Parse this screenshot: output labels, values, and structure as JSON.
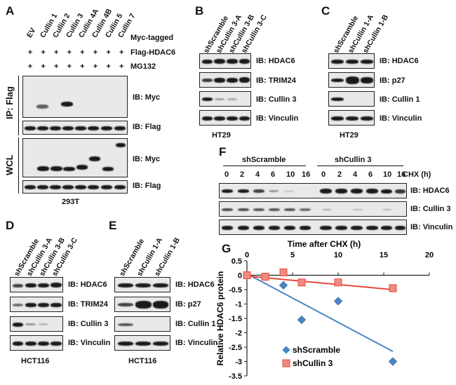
{
  "panels": {
    "A": {
      "letter": "A",
      "lanes": [
        "EV",
        "Cullin 1",
        "Cullin 2",
        "Cullin 3",
        "Cullin 4A",
        "Cullin 4B",
        "Cullin 5",
        "Cullin 7"
      ],
      "row_labels": [
        "Myc-tagged",
        "Flag-HDAC6",
        "MG132"
      ],
      "flag_row": [
        "+",
        "+",
        "+",
        "+",
        "+",
        "+",
        "+",
        "+"
      ],
      "mg_row": [
        "+",
        "+",
        "+",
        "+",
        "+",
        "+",
        "+",
        "+"
      ],
      "ip_label": "IP: Flag",
      "wcl_label": "WCL",
      "blots": [
        "IB: Myc",
        "IB: Flag",
        "IB: Myc",
        "IB: Flag"
      ],
      "cell_line": "293T"
    },
    "B": {
      "letter": "B",
      "lanes": [
        "shScramble",
        "shCullin 3-A",
        "shCullin 3-B",
        "shCullin 3-C"
      ],
      "blots": [
        "IB: HDAC6",
        "IB: TRIM24",
        "IB: Cullin 3",
        "IB: Vinculin"
      ],
      "cell_line": "HT29"
    },
    "C": {
      "letter": "C",
      "lanes": [
        "shScramble",
        "shCullin 1-A",
        "shCullin 1-B"
      ],
      "blots": [
        "IB: HDAC6",
        "IB: p27",
        "IB: Cullin 1",
        "IB: Vinculin"
      ],
      "cell_line": "HT29"
    },
    "D": {
      "letter": "D",
      "lanes": [
        "shScramble",
        "shCullin 3-A",
        "shCullin 3-B",
        "shCullin 3-C"
      ],
      "blots": [
        "IB: HDAC6",
        "IB: TRIM24",
        "IB: Cullin 3",
        "IB: Vinculin"
      ],
      "cell_line": "HCT116"
    },
    "E": {
      "letter": "E",
      "lanes": [
        "shScramble",
        "shCullin 1-A",
        "shCullin 1-B"
      ],
      "blots": [
        "IB: HDAC6",
        "IB: p27",
        "IB: Cullin 1",
        "IB: Vinculin"
      ],
      "cell_line": "HCT116"
    },
    "F": {
      "letter": "F",
      "groups": [
        "shScramble",
        "shCullin 3"
      ],
      "timepoints": [
        "0",
        "2",
        "4",
        "6",
        "10",
        "16",
        "0",
        "2",
        "4",
        "6",
        "10",
        "16"
      ],
      "chx_label": "CHX (h)",
      "blots": [
        "IB: HDAC6",
        "IB: Cullin 3",
        "IB: Vinculin"
      ]
    },
    "G": {
      "letter": "G"
    }
  },
  "chart_data": {
    "type": "scatter",
    "title": "Time after CHX (h)",
    "xlabel": "Time after CHX (h)",
    "ylabel": "Relative HDAC6 protein",
    "xlim": [
      0,
      20
    ],
    "ylim": [
      -3.5,
      0.5
    ],
    "xticks": [
      "0",
      "5",
      "10",
      "15",
      "20"
    ],
    "yticks": [
      "0.5",
      "0",
      "-0.5",
      "-1",
      "-1.5",
      "-2",
      "-2.5",
      "-3",
      "-3.5"
    ],
    "series": [
      {
        "name": "shScramble",
        "color": "#4a86c5",
        "marker": "diamond",
        "x": [
          0,
          2,
          4,
          6,
          10,
          16
        ],
        "y": [
          0,
          -0.05,
          -0.35,
          -1.55,
          -0.9,
          -3.0
        ],
        "trend": [
          [
            0,
            0.05
          ],
          [
            16,
            -2.65
          ]
        ]
      },
      {
        "name": "shCullin 3",
        "color": "#e8493b",
        "marker": "square",
        "x": [
          0,
          2,
          4,
          6,
          10,
          16
        ],
        "y": [
          0,
          -0.05,
          0.1,
          -0.25,
          -0.25,
          -0.45
        ],
        "trend": [
          [
            0,
            -0.03
          ],
          [
            16,
            -0.5
          ]
        ]
      }
    ]
  }
}
